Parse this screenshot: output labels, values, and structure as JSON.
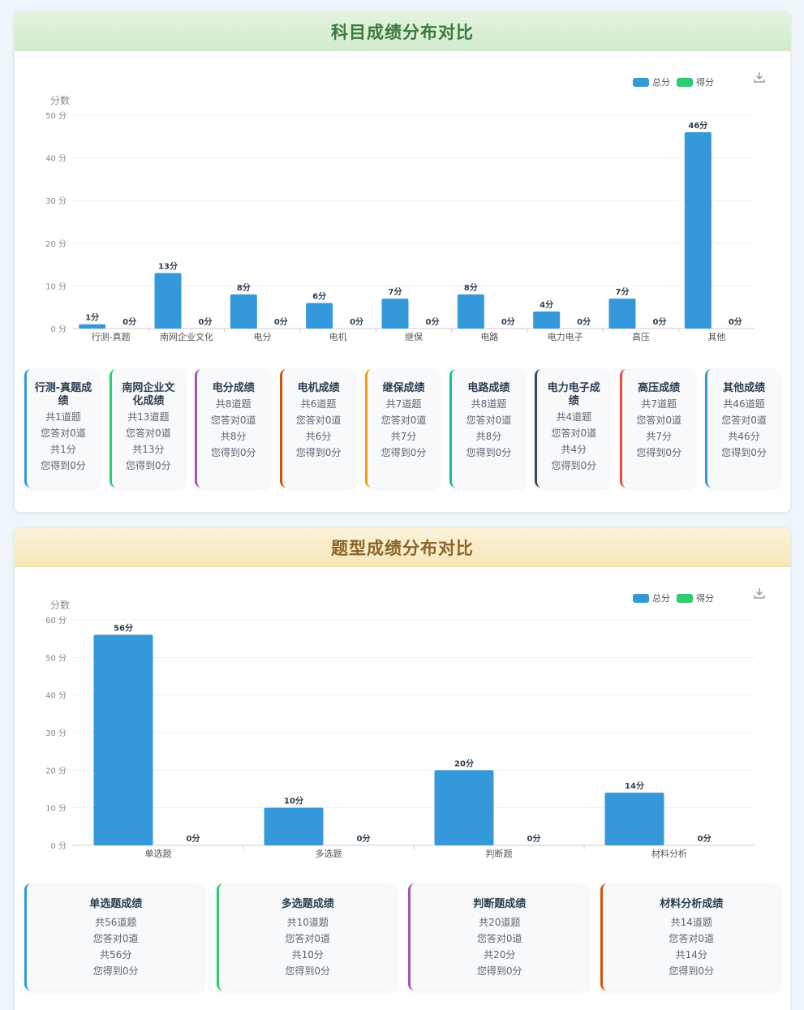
{
  "colors": {
    "total": "#3498db",
    "score": "#2ecc71",
    "card_borders": [
      "#3498db",
      "#2ecc71",
      "#9b59b6",
      "#d35400",
      "#f39c12",
      "#1abc9c",
      "#34495e",
      "#e74c3c",
      "#3498db"
    ]
  },
  "legend": {
    "total": "总分",
    "score": "得分"
  },
  "icons": {
    "download": "download-icon"
  },
  "subject_section": {
    "title": "科目成绩分布对比",
    "chart_data": {
      "type": "bar",
      "ylabel": "分数",
      "ylim": [
        0,
        50
      ],
      "yticks": [
        "0 分",
        "10 分",
        "20 分",
        "30 分",
        "40 分",
        "50 分"
      ],
      "tick_values": [
        0,
        10,
        20,
        30,
        40,
        50
      ],
      "categories": [
        "行测-真题",
        "南网企业文化",
        "电分",
        "电机",
        "继保",
        "电路",
        "电力电子",
        "高压",
        "其他"
      ],
      "series": [
        {
          "name": "总分",
          "values": [
            1,
            13,
            8,
            6,
            7,
            8,
            4,
            7,
            46
          ],
          "labels": [
            "1分",
            "13分",
            "8分",
            "6分",
            "7分",
            "8分",
            "4分",
            "7分",
            "46分"
          ]
        },
        {
          "name": "得分",
          "values": [
            0,
            0,
            0,
            0,
            0,
            0,
            0,
            0,
            0
          ],
          "labels": [
            "0分",
            "0分",
            "0分",
            "0分",
            "0分",
            "0分",
            "0分",
            "0分",
            "0分"
          ]
        }
      ]
    },
    "cards": [
      {
        "title": "行测-真题成绩",
        "total_q": "共1道题",
        "correct": "您答对0道",
        "total_score": "共1分",
        "got": "您得到0分"
      },
      {
        "title": "南网企业文化成绩",
        "total_q": "共13道题",
        "correct": "您答对0道",
        "total_score": "共13分",
        "got": "您得到0分"
      },
      {
        "title": "电分成绩",
        "total_q": "共8道题",
        "correct": "您答对0道",
        "total_score": "共8分",
        "got": "您得到0分"
      },
      {
        "title": "电机成绩",
        "total_q": "共6道题",
        "correct": "您答对0道",
        "total_score": "共6分",
        "got": "您得到0分"
      },
      {
        "title": "继保成绩",
        "total_q": "共7道题",
        "correct": "您答对0道",
        "total_score": "共7分",
        "got": "您得到0分"
      },
      {
        "title": "电路成绩",
        "total_q": "共8道题",
        "correct": "您答对0道",
        "total_score": "共8分",
        "got": "您得到0分"
      },
      {
        "title": "电力电子成绩",
        "total_q": "共4道题",
        "correct": "您答对0道",
        "total_score": "共4分",
        "got": "您得到0分"
      },
      {
        "title": "高压成绩",
        "total_q": "共7道题",
        "correct": "您答对0道",
        "total_score": "共7分",
        "got": "您得到0分"
      },
      {
        "title": "其他成绩",
        "total_q": "共46道题",
        "correct": "您答对0道",
        "total_score": "共46分",
        "got": "您得到0分"
      }
    ]
  },
  "type_section": {
    "title": "题型成绩分布对比",
    "chart_data": {
      "type": "bar",
      "ylabel": "分数",
      "ylim": [
        0,
        60
      ],
      "yticks": [
        "0 分",
        "10 分",
        "20 分",
        "30 分",
        "40 分",
        "50 分",
        "60 分"
      ],
      "tick_values": [
        0,
        10,
        20,
        30,
        40,
        50,
        60
      ],
      "categories": [
        "单选题",
        "多选题",
        "判断题",
        "材料分析"
      ],
      "series": [
        {
          "name": "总分",
          "values": [
            56,
            10,
            20,
            14
          ],
          "labels": [
            "56分",
            "10分",
            "20分",
            "14分"
          ]
        },
        {
          "name": "得分",
          "values": [
            0,
            0,
            0,
            0
          ],
          "labels": [
            "0分",
            "0分",
            "0分",
            "0分"
          ]
        }
      ]
    },
    "cards": [
      {
        "title": "单选题成绩",
        "total_q": "共56道题",
        "correct": "您答对0道",
        "total_score": "共56分",
        "got": "您得到0分"
      },
      {
        "title": "多选题成绩",
        "total_q": "共10道题",
        "correct": "您答对0道",
        "total_score": "共10分",
        "got": "您得到0分"
      },
      {
        "title": "判断题成绩",
        "total_q": "共20道题",
        "correct": "您答对0道",
        "total_score": "共20分",
        "got": "您得到0分"
      },
      {
        "title": "材料分析成绩",
        "total_q": "共14道题",
        "correct": "您答对0道",
        "total_score": "共14分",
        "got": "您得到0分"
      }
    ]
  }
}
